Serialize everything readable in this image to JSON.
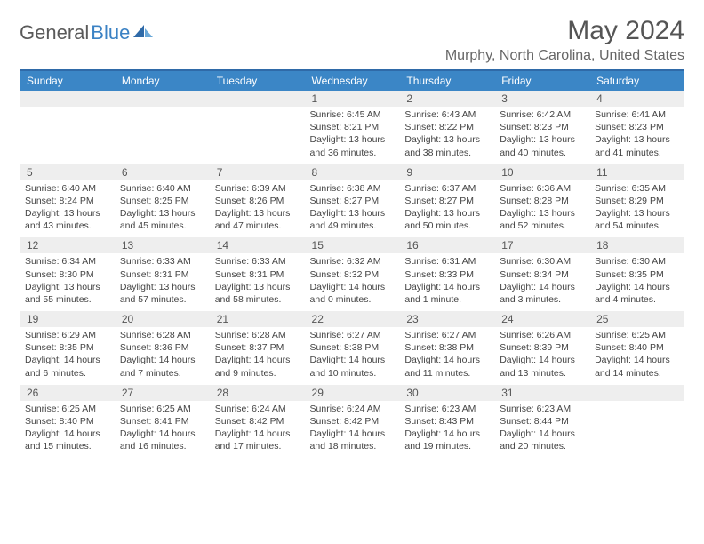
{
  "brand": {
    "name_gray": "General",
    "name_blue": "Blue"
  },
  "title": "May 2024",
  "location": "Murphy, North Carolina, United States",
  "colors": {
    "header_bg": "#3b86c6",
    "header_text": "#ffffff",
    "rule": "#2f6aa8",
    "daynum_bg": "#eeeeee",
    "logo_blue": "#3b82c4"
  },
  "dow": [
    "Sunday",
    "Monday",
    "Tuesday",
    "Wednesday",
    "Thursday",
    "Friday",
    "Saturday"
  ],
  "weeks": [
    [
      {
        "n": "",
        "sunrise": "",
        "sunset": "",
        "daylight": ""
      },
      {
        "n": "",
        "sunrise": "",
        "sunset": "",
        "daylight": ""
      },
      {
        "n": "",
        "sunrise": "",
        "sunset": "",
        "daylight": ""
      },
      {
        "n": "1",
        "sunrise": "Sunrise: 6:45 AM",
        "sunset": "Sunset: 8:21 PM",
        "daylight": "Daylight: 13 hours and 36 minutes."
      },
      {
        "n": "2",
        "sunrise": "Sunrise: 6:43 AM",
        "sunset": "Sunset: 8:22 PM",
        "daylight": "Daylight: 13 hours and 38 minutes."
      },
      {
        "n": "3",
        "sunrise": "Sunrise: 6:42 AM",
        "sunset": "Sunset: 8:23 PM",
        "daylight": "Daylight: 13 hours and 40 minutes."
      },
      {
        "n": "4",
        "sunrise": "Sunrise: 6:41 AM",
        "sunset": "Sunset: 8:23 PM",
        "daylight": "Daylight: 13 hours and 41 minutes."
      }
    ],
    [
      {
        "n": "5",
        "sunrise": "Sunrise: 6:40 AM",
        "sunset": "Sunset: 8:24 PM",
        "daylight": "Daylight: 13 hours and 43 minutes."
      },
      {
        "n": "6",
        "sunrise": "Sunrise: 6:40 AM",
        "sunset": "Sunset: 8:25 PM",
        "daylight": "Daylight: 13 hours and 45 minutes."
      },
      {
        "n": "7",
        "sunrise": "Sunrise: 6:39 AM",
        "sunset": "Sunset: 8:26 PM",
        "daylight": "Daylight: 13 hours and 47 minutes."
      },
      {
        "n": "8",
        "sunrise": "Sunrise: 6:38 AM",
        "sunset": "Sunset: 8:27 PM",
        "daylight": "Daylight: 13 hours and 49 minutes."
      },
      {
        "n": "9",
        "sunrise": "Sunrise: 6:37 AM",
        "sunset": "Sunset: 8:27 PM",
        "daylight": "Daylight: 13 hours and 50 minutes."
      },
      {
        "n": "10",
        "sunrise": "Sunrise: 6:36 AM",
        "sunset": "Sunset: 8:28 PM",
        "daylight": "Daylight: 13 hours and 52 minutes."
      },
      {
        "n": "11",
        "sunrise": "Sunrise: 6:35 AM",
        "sunset": "Sunset: 8:29 PM",
        "daylight": "Daylight: 13 hours and 54 minutes."
      }
    ],
    [
      {
        "n": "12",
        "sunrise": "Sunrise: 6:34 AM",
        "sunset": "Sunset: 8:30 PM",
        "daylight": "Daylight: 13 hours and 55 minutes."
      },
      {
        "n": "13",
        "sunrise": "Sunrise: 6:33 AM",
        "sunset": "Sunset: 8:31 PM",
        "daylight": "Daylight: 13 hours and 57 minutes."
      },
      {
        "n": "14",
        "sunrise": "Sunrise: 6:33 AM",
        "sunset": "Sunset: 8:31 PM",
        "daylight": "Daylight: 13 hours and 58 minutes."
      },
      {
        "n": "15",
        "sunrise": "Sunrise: 6:32 AM",
        "sunset": "Sunset: 8:32 PM",
        "daylight": "Daylight: 14 hours and 0 minutes."
      },
      {
        "n": "16",
        "sunrise": "Sunrise: 6:31 AM",
        "sunset": "Sunset: 8:33 PM",
        "daylight": "Daylight: 14 hours and 1 minute."
      },
      {
        "n": "17",
        "sunrise": "Sunrise: 6:30 AM",
        "sunset": "Sunset: 8:34 PM",
        "daylight": "Daylight: 14 hours and 3 minutes."
      },
      {
        "n": "18",
        "sunrise": "Sunrise: 6:30 AM",
        "sunset": "Sunset: 8:35 PM",
        "daylight": "Daylight: 14 hours and 4 minutes."
      }
    ],
    [
      {
        "n": "19",
        "sunrise": "Sunrise: 6:29 AM",
        "sunset": "Sunset: 8:35 PM",
        "daylight": "Daylight: 14 hours and 6 minutes."
      },
      {
        "n": "20",
        "sunrise": "Sunrise: 6:28 AM",
        "sunset": "Sunset: 8:36 PM",
        "daylight": "Daylight: 14 hours and 7 minutes."
      },
      {
        "n": "21",
        "sunrise": "Sunrise: 6:28 AM",
        "sunset": "Sunset: 8:37 PM",
        "daylight": "Daylight: 14 hours and 9 minutes."
      },
      {
        "n": "22",
        "sunrise": "Sunrise: 6:27 AM",
        "sunset": "Sunset: 8:38 PM",
        "daylight": "Daylight: 14 hours and 10 minutes."
      },
      {
        "n": "23",
        "sunrise": "Sunrise: 6:27 AM",
        "sunset": "Sunset: 8:38 PM",
        "daylight": "Daylight: 14 hours and 11 minutes."
      },
      {
        "n": "24",
        "sunrise": "Sunrise: 6:26 AM",
        "sunset": "Sunset: 8:39 PM",
        "daylight": "Daylight: 14 hours and 13 minutes."
      },
      {
        "n": "25",
        "sunrise": "Sunrise: 6:25 AM",
        "sunset": "Sunset: 8:40 PM",
        "daylight": "Daylight: 14 hours and 14 minutes."
      }
    ],
    [
      {
        "n": "26",
        "sunrise": "Sunrise: 6:25 AM",
        "sunset": "Sunset: 8:40 PM",
        "daylight": "Daylight: 14 hours and 15 minutes."
      },
      {
        "n": "27",
        "sunrise": "Sunrise: 6:25 AM",
        "sunset": "Sunset: 8:41 PM",
        "daylight": "Daylight: 14 hours and 16 minutes."
      },
      {
        "n": "28",
        "sunrise": "Sunrise: 6:24 AM",
        "sunset": "Sunset: 8:42 PM",
        "daylight": "Daylight: 14 hours and 17 minutes."
      },
      {
        "n": "29",
        "sunrise": "Sunrise: 6:24 AM",
        "sunset": "Sunset: 8:42 PM",
        "daylight": "Daylight: 14 hours and 18 minutes."
      },
      {
        "n": "30",
        "sunrise": "Sunrise: 6:23 AM",
        "sunset": "Sunset: 8:43 PM",
        "daylight": "Daylight: 14 hours and 19 minutes."
      },
      {
        "n": "31",
        "sunrise": "Sunrise: 6:23 AM",
        "sunset": "Sunset: 8:44 PM",
        "daylight": "Daylight: 14 hours and 20 minutes."
      },
      {
        "n": "",
        "sunrise": "",
        "sunset": "",
        "daylight": ""
      }
    ]
  ]
}
